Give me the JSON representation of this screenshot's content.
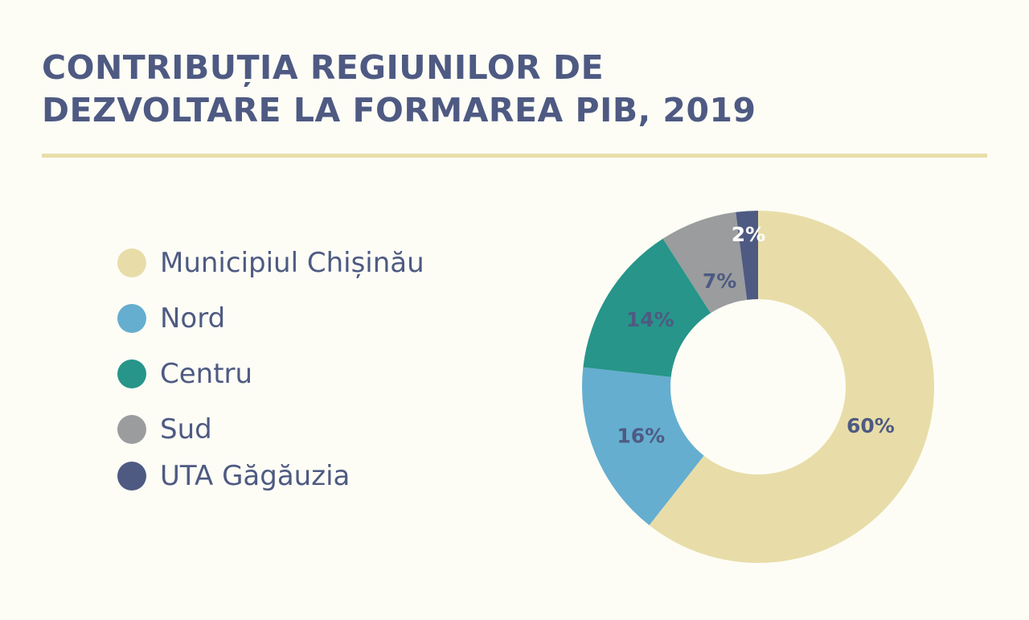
{
  "title": {
    "line1": "CONTRIBUȚIA REGIUNILOR DE",
    "line2": "DEZVOLTARE LA FORMAREA PIB, 2019"
  },
  "colors": {
    "background": "#fdfdf6",
    "text": "#4e5a82",
    "divider": "#e9dfa9"
  },
  "chart_data": {
    "type": "pie",
    "variant": "donut",
    "title": "CONTRIBUȚIA REGIUNILOR DE DEZVOLTARE LA FORMAREA PIB, 2019",
    "legend_position": "left",
    "categories": [
      "Municipiul Chișinău",
      "Nord",
      "Centru",
      "Sud",
      "UTA Găgăuzia"
    ],
    "values": [
      60,
      16,
      14,
      7,
      2
    ],
    "data_labels": [
      "60%",
      "16%",
      "14%",
      "7%",
      "2%"
    ],
    "colors": [
      "#e8dda8",
      "#65aed0",
      "#27958a",
      "#9a9c9e",
      "#4e5a82"
    ],
    "label_colors": [
      "#4e5a82",
      "#4e5a82",
      "#4e5a82",
      "#4e5a82",
      "#ffffff"
    ]
  }
}
